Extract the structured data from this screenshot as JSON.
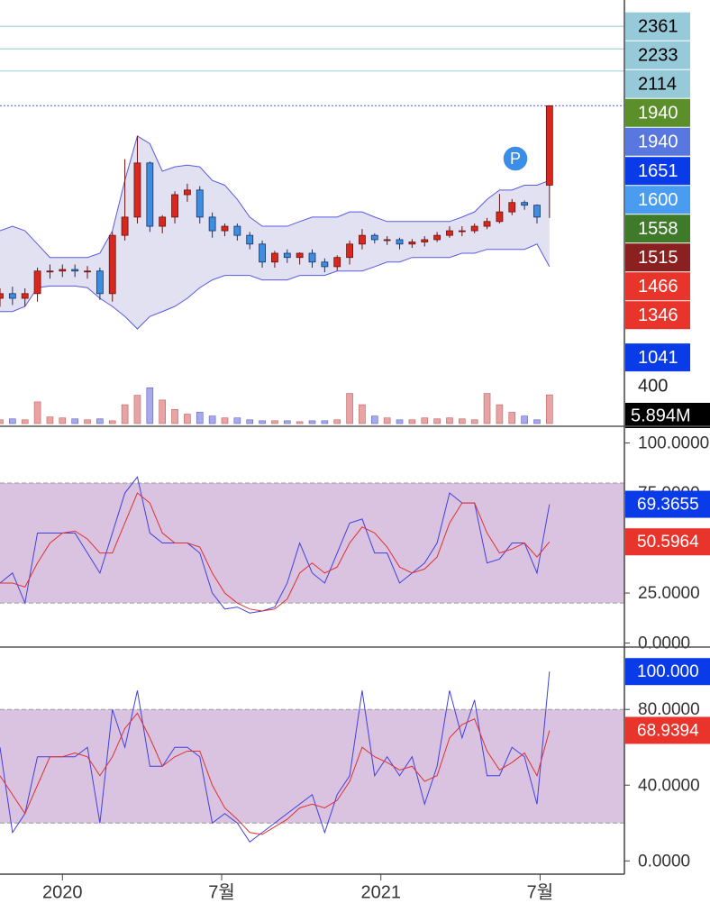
{
  "chart_data": [
    {
      "type": "candlestick",
      "x": [
        0,
        2,
        4,
        6,
        8,
        10,
        12,
        14,
        16,
        18,
        20,
        22,
        24,
        26,
        28,
        30,
        32,
        34,
        36,
        38,
        40,
        42,
        44,
        46,
        48,
        50,
        52,
        54,
        56,
        58,
        60,
        62,
        64,
        66,
        68,
        70,
        72,
        74,
        76,
        78,
        80,
        82,
        84,
        86,
        88
      ],
      "open": [
        1205,
        1219,
        1205,
        1219,
        1289,
        1289,
        1294,
        1289,
        1289,
        1219,
        1408,
        1473,
        1684,
        1440,
        1473,
        1557,
        1575,
        1473,
        1424,
        1440,
        1408,
        1378,
        1318,
        1347,
        1333,
        1347,
        1318,
        1303,
        1333,
        1378,
        1408,
        1393,
        1393,
        1378,
        1385,
        1393,
        1408,
        1424,
        1424,
        1440,
        1457,
        1492,
        1527,
        1517,
        1594
      ],
      "high": [
        1235,
        1240,
        1235,
        1300,
        1310,
        1310,
        1310,
        1305,
        1300,
        1420,
        1700,
        1800,
        1690,
        1480,
        1570,
        1600,
        1590,
        1490,
        1450,
        1450,
        1420,
        1390,
        1355,
        1360,
        1350,
        1360,
        1330,
        1340,
        1390,
        1430,
        1415,
        1405,
        1400,
        1395,
        1405,
        1420,
        1440,
        1440,
        1450,
        1470,
        1560,
        1540,
        1535,
        1520,
        1940
      ],
      "low": [
        1180,
        1185,
        1180,
        1195,
        1265,
        1270,
        1270,
        1265,
        1200,
        1195,
        1390,
        1450,
        1420,
        1415,
        1450,
        1530,
        1450,
        1400,
        1405,
        1390,
        1360,
        1300,
        1300,
        1315,
        1310,
        1300,
        1285,
        1290,
        1310,
        1360,
        1380,
        1375,
        1360,
        1365,
        1370,
        1385,
        1400,
        1405,
        1415,
        1430,
        1450,
        1480,
        1500,
        1450,
        1470
      ],
      "close": [
        1219,
        1205,
        1219,
        1289,
        1289,
        1294,
        1289,
        1289,
        1219,
        1408,
        1473,
        1684,
        1440,
        1473,
        1557,
        1575,
        1473,
        1424,
        1440,
        1408,
        1378,
        1318,
        1347,
        1333,
        1347,
        1318,
        1303,
        1333,
        1378,
        1408,
        1393,
        1393,
        1378,
        1385,
        1393,
        1408,
        1424,
        1424,
        1440,
        1457,
        1492,
        1527,
        1517,
        1473,
        1940
      ],
      "volume": [
        40,
        50,
        40,
        230,
        70,
        60,
        50,
        40,
        50,
        30,
        200,
        300,
        380,
        250,
        150,
        100,
        120,
        80,
        60,
        60,
        40,
        30,
        30,
        30,
        20,
        30,
        30,
        40,
        320,
        200,
        80,
        60,
        40,
        40,
        60,
        50,
        60,
        50,
        40,
        320,
        200,
        120,
        80,
        40,
        305
      ],
      "bb_upper": [
        1424,
        1440,
        1424,
        1378,
        1333,
        1333,
        1333,
        1333,
        1347,
        1424,
        1613,
        1800,
        1766,
        1650,
        1668,
        1675,
        1668,
        1613,
        1594,
        1539,
        1473,
        1440,
        1440,
        1440,
        1457,
        1473,
        1473,
        1473,
        1492,
        1492,
        1473,
        1457,
        1457,
        1457,
        1457,
        1457,
        1457,
        1473,
        1492,
        1539,
        1575,
        1575,
        1594,
        1594,
        1613
      ],
      "bb_lower": [
        1166,
        1166,
        1181,
        1237,
        1242,
        1242,
        1242,
        1237,
        1205,
        1181,
        1152,
        1117,
        1152,
        1166,
        1181,
        1205,
        1237,
        1261,
        1275,
        1275,
        1275,
        1261,
        1261,
        1261,
        1275,
        1275,
        1275,
        1289,
        1289,
        1289,
        1303,
        1318,
        1318,
        1333,
        1333,
        1333,
        1333,
        1347,
        1347,
        1360,
        1360,
        1360,
        1360,
        1378,
        1303
      ],
      "up_color": "#d8281e",
      "down_color": "#3d8ee0",
      "up_volume_color": "#e8a4a4",
      "down_volume_color": "#a8a8ec",
      "band_color": "#5a5ae0",
      "ylim": [
        880,
        2520
      ],
      "log_scale": true,
      "xlim": [
        0,
        100
      ],
      "xticks": [
        {
          "value": 10,
          "label": "2020"
        },
        {
          "value": 35.5,
          "label": "7월"
        },
        {
          "value": 61,
          "label": "2021"
        },
        {
          "value": 86.5,
          "label": "7월"
        }
      ],
      "price_tags": [
        {
          "value": 2361,
          "color": "#96cad8",
          "text_color": "#000",
          "guide": "solid"
        },
        {
          "value": 2233,
          "color": "#96cad8",
          "text_color": "#000",
          "guide": "solid"
        },
        {
          "value": 2114,
          "color": "#96cad8",
          "text_color": "#000",
          "guide": "solid"
        },
        {
          "value": 1940,
          "color": "#5b8f2a",
          "text_color": "#fff",
          "guide": "dotted"
        },
        {
          "value": 1940,
          "color": "#5878e0",
          "text_color": "#fff"
        },
        {
          "value": 1651,
          "color": "#0a3be8",
          "text_color": "#fff"
        },
        {
          "value": 1600,
          "color": "#4a9cf0",
          "text_color": "#fff"
        },
        {
          "value": 1558,
          "color": "#3f7a2a",
          "text_color": "#fff"
        },
        {
          "value": 1515,
          "color": "#8b2020",
          "text_color": "#fff"
        },
        {
          "value": 1466,
          "color": "#e8342a",
          "text_color": "#fff"
        },
        {
          "value": 1346,
          "color": "#e8342a",
          "text_color": "#fff"
        },
        {
          "value": 1041,
          "color": "#0a3be8",
          "text_color": "#fff"
        }
      ],
      "volume_ylim": [
        0,
        440
      ],
      "volume_ticks": [
        400
      ],
      "volume_label": "5.894M",
      "marker": "P"
    },
    {
      "type": "line",
      "series": [
        {
          "color": "#4040e0",
          "values": [
            30,
            35,
            20,
            55,
            55,
            55,
            55,
            45,
            35,
            55,
            75,
            83,
            55,
            50,
            50,
            50,
            45,
            25,
            17,
            18,
            15,
            16,
            18,
            30,
            50,
            35,
            30,
            45,
            60,
            62,
            45,
            45,
            30,
            35,
            40,
            50,
            75,
            70,
            70,
            40,
            42,
            50,
            50,
            35,
            69.3655
          ]
        },
        {
          "color": "#e03030",
          "values": [
            30,
            30,
            28,
            40,
            50,
            55,
            56,
            52,
            45,
            45,
            60,
            75,
            70,
            55,
            50,
            50,
            48,
            35,
            25,
            20,
            17,
            16,
            17,
            22,
            35,
            40,
            35,
            38,
            50,
            58,
            55,
            48,
            38,
            35,
            37,
            43,
            60,
            70,
            70,
            55,
            45,
            47,
            50,
            43,
            50.5964
          ]
        }
      ],
      "ylim": [
        -2,
        107
      ],
      "yticks": [
        {
          "value": 0,
          "label": "0.0000"
        },
        {
          "value": 25,
          "label": "25.0000"
        },
        {
          "value": 75,
          "label": "75.0000"
        },
        {
          "value": 100,
          "label": "100.0000"
        }
      ],
      "band": [
        20,
        80
      ],
      "band_color": "#dac3e0",
      "tags": [
        {
          "value": 69.3655,
          "color": "#0a3be8"
        },
        {
          "value": 50.5964,
          "color": "#e8342a"
        }
      ]
    },
    {
      "type": "line",
      "series": [
        {
          "color": "#4040e0",
          "values": [
            60,
            15,
            25,
            55,
            55,
            55,
            55,
            60,
            20,
            80,
            60,
            90,
            50,
            50,
            60,
            60,
            55,
            20,
            25,
            20,
            10,
            15,
            20,
            25,
            30,
            35,
            15,
            35,
            45,
            90,
            45,
            55,
            45,
            55,
            30,
            50,
            90,
            65,
            85,
            45,
            45,
            60,
            55,
            30,
            100
          ]
        },
        {
          "color": "#e03030",
          "values": [
            45,
            35,
            25,
            40,
            55,
            55,
            57,
            55,
            45,
            55,
            70,
            78,
            65,
            50,
            55,
            58,
            58,
            40,
            28,
            22,
            15,
            14,
            18,
            22,
            28,
            30,
            28,
            32,
            42,
            60,
            55,
            52,
            48,
            50,
            42,
            45,
            65,
            72,
            75,
            58,
            48,
            52,
            57,
            45,
            68.9394
          ]
        }
      ],
      "ylim": [
        -7,
        112
      ],
      "yticks": [
        {
          "value": 0,
          "label": "0.0000"
        },
        {
          "value": 40,
          "label": "40.0000"
        },
        {
          "value": 80,
          "label": "80.0000"
        }
      ],
      "band": [
        20,
        80
      ],
      "band_color": "#dac3e0",
      "tags": [
        {
          "value": 100,
          "label": "100.000",
          "color": "#0a3be8"
        },
        {
          "value": 68.9394,
          "color": "#e8342a"
        }
      ]
    }
  ]
}
